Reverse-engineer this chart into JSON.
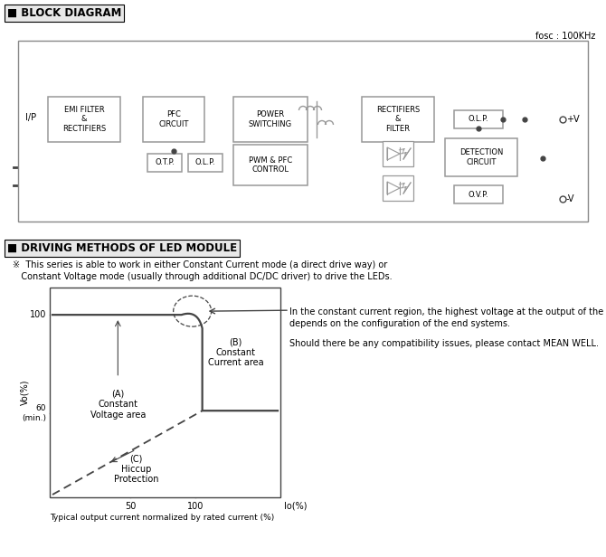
{
  "bg_color": "#ffffff",
  "title1": "■ BLOCK DIAGRAM",
  "title2": "■ DRIVING METHODS OF LED MODULE",
  "fosc_label": "fosc : 100KHz",
  "note_text1": "※  This series is able to work in either Constant Current mode (a direct drive way) or",
  "note_text2": "   Constant Voltage mode (usually through additional DC/DC driver) to drive the LEDs.",
  "right_text_line1": "In the constant current region, the highest voltage at the output of the driver",
  "right_text_line2": "depends on the configuration of the end systems.",
  "right_text_line3": "Should there be any compatibility issues, please contact MEAN WELL.",
  "caption": "Typical output current normalized by rated current (%)",
  "label_A": "(A)\nConstant\nVoltage area",
  "label_B": "(B)\nConstant\nCurrent area",
  "label_C": "(C)\nHiccup\nProtection",
  "box_color": "#999999",
  "line_color": "#444444",
  "wire_color": "#555555"
}
